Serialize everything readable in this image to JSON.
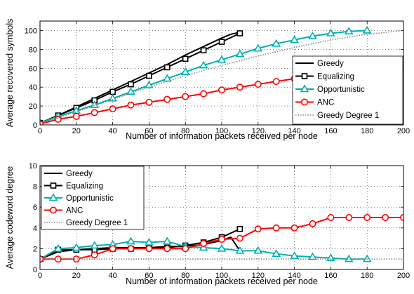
{
  "chart_data": [
    {
      "type": "line",
      "xlabel": "Number of information packets received per node",
      "ylabel": "Average recovered symbols",
      "xlim": [
        0,
        200
      ],
      "ylim": [
        0,
        110
      ],
      "xticks": [
        "0",
        "20",
        "40",
        "60",
        "80",
        "100",
        "120",
        "140",
        "160",
        "180",
        "200"
      ],
      "yticks": [
        "0",
        "20",
        "40",
        "60",
        "80",
        "100"
      ],
      "xtick_values": [
        0,
        20,
        40,
        60,
        80,
        100,
        120,
        140,
        160,
        180,
        200
      ],
      "ytick_values": [
        0,
        20,
        40,
        60,
        80,
        100
      ],
      "grid": true,
      "legend_position": "bottom-right",
      "series": [
        {
          "name": "Greedy",
          "color": "#000000",
          "style": "solid",
          "marker": "none",
          "x": [
            0,
            10,
            20,
            30,
            40,
            50,
            60,
            70,
            80,
            90,
            100,
            105,
            110
          ],
          "y": [
            1,
            10,
            19,
            28,
            37,
            46,
            55,
            64,
            74,
            83,
            92,
            96,
            98
          ]
        },
        {
          "name": "Equalizing",
          "color": "#000000",
          "style": "solid",
          "marker": "square",
          "x": [
            0,
            10,
            20,
            30,
            40,
            50,
            60,
            70,
            80,
            90,
            100,
            110
          ],
          "y": [
            2,
            10,
            18,
            26,
            35,
            43,
            52,
            61,
            70,
            79,
            88,
            97
          ]
        },
        {
          "name": "Opportunistic",
          "color": "#00b0b0",
          "style": "solid",
          "marker": "triangle",
          "x": [
            0,
            10,
            20,
            30,
            40,
            50,
            60,
            70,
            80,
            90,
            100,
            110,
            120,
            130,
            140,
            150,
            160,
            170,
            180
          ],
          "y": [
            2,
            9,
            15,
            21,
            28,
            35,
            42,
            49,
            56,
            63,
            69,
            75,
            81,
            86,
            90,
            94,
            97,
            99,
            100
          ]
        },
        {
          "name": "ANC",
          "color": "#ff0000",
          "style": "solid",
          "marker": "circle",
          "x": [
            0,
            10,
            20,
            30,
            40,
            50,
            60,
            70,
            80,
            90,
            100,
            110,
            120,
            130,
            140,
            150,
            160,
            170,
            180,
            190,
            200
          ],
          "y": [
            1,
            6,
            9,
            13,
            17,
            21,
            24,
            27,
            30,
            33,
            37,
            40,
            43,
            46,
            49,
            52,
            55,
            58,
            61,
            64,
            66
          ]
        },
        {
          "name": "Greedy Degree 1",
          "color": "#888888",
          "style": "dotted",
          "marker": "none",
          "x": [
            0,
            20,
            40,
            60,
            80,
            100,
            120,
            140,
            160,
            180,
            200
          ],
          "y": [
            1,
            14,
            27,
            40,
            52,
            63,
            73,
            82,
            90,
            96,
            100
          ]
        }
      ]
    },
    {
      "type": "line",
      "xlabel": "Number of information packets received per node",
      "ylabel": "Average codeword degree",
      "xlim": [
        0,
        200
      ],
      "ylim": [
        0,
        10
      ],
      "xticks": [
        "0",
        "20",
        "40",
        "60",
        "80",
        "100",
        "120",
        "140",
        "160",
        "180",
        "200"
      ],
      "yticks": [
        "0",
        "2",
        "4",
        "6",
        "8",
        "10"
      ],
      "xtick_values": [
        0,
        20,
        40,
        60,
        80,
        100,
        120,
        140,
        160,
        180,
        200
      ],
      "ytick_values": [
        0,
        2,
        4,
        6,
        8,
        10
      ],
      "grid": true,
      "legend_position": "top-left",
      "series": [
        {
          "name": "Greedy",
          "color": "#000000",
          "style": "solid",
          "marker": "none",
          "x": [
            0,
            10,
            20,
            30,
            40,
            50,
            60,
            70,
            80,
            90,
            100,
            105,
            110
          ],
          "y": [
            1,
            1.7,
            1.9,
            2.0,
            2.1,
            2.1,
            2.1,
            2.2,
            2.2,
            2.4,
            2.8,
            3.1,
            1.8
          ]
        },
        {
          "name": "Equalizing",
          "color": "#000000",
          "style": "solid",
          "marker": "square",
          "x": [
            0,
            10,
            20,
            30,
            40,
            50,
            60,
            70,
            80,
            90,
            100,
            110
          ],
          "y": [
            1,
            1.9,
            1.9,
            1.9,
            2.0,
            2.0,
            2.1,
            2.1,
            2.3,
            2.6,
            3.1,
            3.9
          ]
        },
        {
          "name": "Opportunistic",
          "color": "#00b0b0",
          "style": "solid",
          "marker": "triangle",
          "x": [
            0,
            10,
            20,
            30,
            40,
            50,
            60,
            70,
            80,
            90,
            100,
            110,
            120,
            130,
            140,
            150,
            160,
            170,
            180
          ],
          "y": [
            1,
            2.0,
            2.1,
            2.3,
            2.4,
            2.7,
            2.6,
            2.7,
            2.2,
            2.1,
            2.0,
            1.8,
            1.8,
            1.5,
            1.3,
            1.2,
            1.1,
            1.0,
            1.0
          ]
        },
        {
          "name": "ANC",
          "color": "#ff0000",
          "style": "solid",
          "marker": "circle",
          "x": [
            0,
            10,
            20,
            30,
            40,
            50,
            60,
            70,
            80,
            90,
            100,
            110,
            120,
            130,
            140,
            150,
            160,
            170,
            180,
            190,
            200
          ],
          "y": [
            1,
            1,
            1,
            1.4,
            2,
            2,
            2,
            2,
            2,
            2.5,
            2.9,
            3.0,
            3.9,
            4.0,
            4.0,
            4.4,
            5.0,
            5.0,
            5.0,
            5.0,
            5.0
          ]
        },
        {
          "name": "Greedy Degree 1",
          "color": "#888888",
          "style": "dotted",
          "marker": "none",
          "x": [
            0,
            200
          ],
          "y": [
            1,
            1
          ]
        }
      ]
    }
  ]
}
